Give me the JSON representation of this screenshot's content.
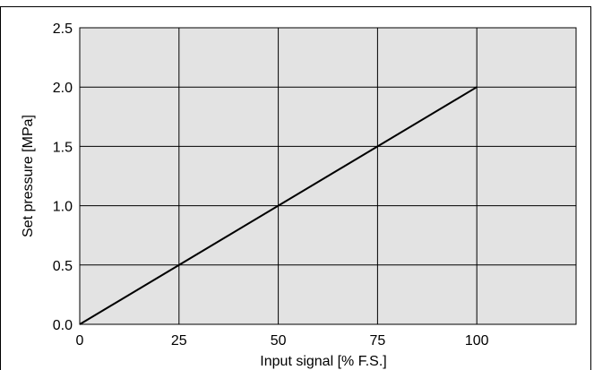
{
  "chart_data": {
    "type": "line",
    "xlabel": "Input signal   [% F.S.]",
    "ylabel": "Set pressure   [MPa]",
    "xlim": [
      0,
      125
    ],
    "ylim": [
      0,
      2.5
    ],
    "x_ticks": [
      "0",
      "25",
      "50",
      "75",
      "100"
    ],
    "x_tick_values": [
      0,
      25,
      50,
      75,
      100
    ],
    "y_ticks": [
      "0.0",
      "0.5",
      "1.0",
      "1.5",
      "2.0",
      "2.5"
    ],
    "y_tick_values": [
      0,
      0.5,
      1.0,
      1.5,
      2.0,
      2.5
    ],
    "x_grid": [
      0,
      25,
      50,
      75,
      100,
      125
    ],
    "y_grid": [
      0,
      0.5,
      1.0,
      1.5,
      2.0,
      2.5
    ],
    "grid": true,
    "series": [
      {
        "x": [
          0,
          100
        ],
        "y": [
          0.0,
          2.0
        ],
        "color": "#000000"
      }
    ],
    "background_color": "#e3e3e3"
  }
}
